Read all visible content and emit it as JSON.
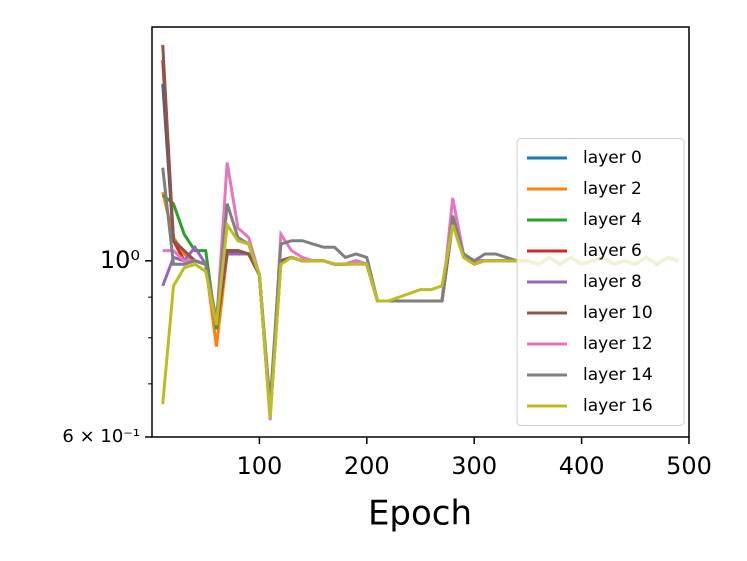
{
  "chart_data": {
    "type": "line",
    "x_label": "Epoch",
    "x": [
      10,
      20,
      30,
      40,
      50,
      60,
      70,
      80,
      90,
      100,
      110,
      120,
      130,
      140,
      150,
      160,
      170,
      180,
      190,
      200,
      210,
      220,
      230,
      240,
      250,
      260,
      270,
      280,
      290,
      300,
      310,
      320,
      330,
      340,
      350,
      360,
      370,
      380,
      390,
      400,
      410,
      420,
      430,
      440,
      450,
      460,
      470,
      480,
      490
    ],
    "xlim": [
      0,
      500
    ],
    "xticks": [
      100,
      200,
      300,
      400,
      500
    ],
    "ylim": [
      0.6,
      1.97
    ],
    "y_scale": "log",
    "yticks": [
      {
        "value": 0.6,
        "label": "6 × 10⁻¹"
      },
      {
        "value": 1,
        "label": "10⁰"
      }
    ],
    "yminorticks": [
      0.7,
      0.8,
      0.9
    ],
    "grid": false,
    "legend": "center right",
    "series": [
      {
        "name": "layer 0",
        "color": "#1f77b4",
        "values": [
          1.67,
          1.06,
          1.02,
          1.0,
          0.99,
          0.84,
          1.03,
          1.03,
          1.02,
          0.96,
          0.64,
          1.0,
          1.01,
          1.0,
          1.0,
          1.0,
          0.99,
          0.99,
          1.0,
          0.99,
          0.89,
          0.89,
          0.89,
          0.89,
          0.89,
          0.89,
          0.89,
          1.12,
          1.02,
          1.0,
          1.0,
          1.0,
          1.0,
          1.0,
          1.0,
          0.99,
          1.01,
          0.99,
          1.01,
          0.99,
          1.0,
          1.01,
          0.99,
          1.0,
          0.99,
          1.01,
          0.99,
          1.01,
          1.0
        ]
      },
      {
        "name": "layer 2",
        "color": "#ff7f0e",
        "values": [
          1.22,
          1.07,
          1.02,
          1.0,
          0.99,
          0.78,
          1.02,
          1.03,
          1.02,
          0.96,
          0.64,
          1.0,
          1.01,
          1.0,
          1.0,
          1.0,
          0.99,
          0.99,
          1.0,
          0.99,
          0.89,
          0.89,
          0.89,
          0.89,
          0.89,
          0.89,
          0.89,
          1.12,
          1.02,
          1.0,
          1.0,
          1.0,
          1.0,
          1.0,
          1.0,
          0.99,
          1.01,
          0.99,
          1.01,
          0.99,
          1.0,
          1.01,
          0.99,
          1.0,
          0.99,
          1.01,
          0.99,
          1.01,
          1.0
        ]
      },
      {
        "name": "layer 4",
        "color": "#2ca02c",
        "values": [
          1.21,
          1.18,
          1.08,
          1.03,
          1.03,
          0.82,
          1.03,
          1.02,
          1.02,
          0.96,
          0.64,
          1.0,
          1.01,
          1.0,
          1.0,
          1.0,
          0.99,
          0.99,
          1.0,
          0.99,
          0.89,
          0.89,
          0.89,
          0.89,
          0.89,
          0.89,
          0.89,
          1.12,
          1.02,
          1.0,
          1.0,
          1.0,
          1.0,
          1.0,
          1.0,
          0.99,
          1.01,
          0.99,
          1.01,
          0.99,
          1.0,
          1.01,
          0.99,
          1.0,
          0.99,
          1.01,
          0.99,
          1.01,
          1.0
        ]
      },
      {
        "name": "layer 6",
        "color": "#d62728",
        "values": [
          1.79,
          1.06,
          1.0,
          1.0,
          0.99,
          0.83,
          1.02,
          1.03,
          1.02,
          0.96,
          0.64,
          1.0,
          1.01,
          1.0,
          1.0,
          1.0,
          0.99,
          0.99,
          1.0,
          0.99,
          0.89,
          0.89,
          0.89,
          0.89,
          0.89,
          0.89,
          0.89,
          1.12,
          1.02,
          1.0,
          1.0,
          1.0,
          1.0,
          1.0,
          1.0,
          0.99,
          1.01,
          0.99,
          1.01,
          0.99,
          1.0,
          1.01,
          0.99,
          1.0,
          0.99,
          1.01,
          0.99,
          1.01,
          1.0
        ]
      },
      {
        "name": "layer 8",
        "color": "#9467bd",
        "values": [
          0.93,
          1.01,
          1.0,
          1.04,
          0.99,
          0.84,
          1.02,
          1.02,
          1.02,
          0.96,
          0.64,
          1.0,
          1.01,
          1.0,
          1.0,
          1.0,
          0.99,
          0.99,
          1.0,
          0.99,
          0.89,
          0.89,
          0.89,
          0.89,
          0.89,
          0.89,
          0.89,
          1.12,
          1.02,
          1.0,
          1.0,
          1.0,
          1.0,
          1.0,
          1.0,
          0.99,
          1.01,
          0.99,
          1.01,
          0.99,
          1.0,
          1.01,
          0.99,
          1.0,
          0.99,
          1.01,
          0.99,
          1.01,
          1.0
        ]
      },
      {
        "name": "layer 10",
        "color": "#8c564b",
        "values": [
          1.87,
          1.06,
          1.03,
          1.0,
          0.99,
          0.83,
          1.03,
          1.03,
          1.02,
          0.96,
          0.64,
          1.0,
          1.01,
          1.0,
          1.0,
          1.0,
          0.99,
          0.99,
          1.0,
          0.99,
          0.89,
          0.89,
          0.89,
          0.89,
          0.89,
          0.89,
          0.89,
          1.12,
          1.02,
          1.0,
          1.0,
          1.0,
          1.0,
          1.0,
          1.0,
          0.99,
          1.01,
          0.99,
          1.01,
          0.99,
          1.0,
          1.01,
          0.99,
          1.0,
          0.99,
          1.01,
          0.99,
          1.01,
          1.0
        ]
      },
      {
        "name": "layer 12",
        "color": "#e377c2",
        "values": [
          1.03,
          1.03,
          1.0,
          1.0,
          0.99,
          0.83,
          1.33,
          1.1,
          1.07,
          0.96,
          0.63,
          1.08,
          1.03,
          1.01,
          1.0,
          1.0,
          0.99,
          0.99,
          1.0,
          0.99,
          0.89,
          0.89,
          0.89,
          0.89,
          0.89,
          0.89,
          0.89,
          1.2,
          1.02,
          1.0,
          1.0,
          1.0,
          1.0,
          1.0,
          1.0,
          0.99,
          1.01,
          0.99,
          1.01,
          0.99,
          1.0,
          1.01,
          0.99,
          1.0,
          0.99,
          1.01,
          0.99,
          1.01,
          1.0
        ]
      },
      {
        "name": "layer 14",
        "color": "#7f7f7f",
        "values": [
          1.31,
          0.99,
          0.99,
          1.0,
          0.99,
          0.84,
          1.18,
          1.07,
          1.05,
          0.96,
          0.66,
          1.05,
          1.06,
          1.06,
          1.05,
          1.04,
          1.04,
          1.01,
          1.02,
          1.01,
          0.89,
          0.89,
          0.89,
          0.89,
          0.89,
          0.89,
          0.89,
          1.14,
          1.02,
          1.0,
          1.02,
          1.02,
          1.01,
          1.0,
          1.0,
          0.99,
          1.01,
          0.99,
          1.01,
          0.99,
          1.0,
          1.01,
          0.99,
          1.0,
          0.99,
          1.01,
          0.99,
          1.01,
          1.0
        ]
      },
      {
        "name": "layer 16",
        "color": "#bcbd22",
        "values": [
          0.66,
          0.93,
          0.98,
          0.99,
          0.97,
          0.83,
          1.11,
          1.06,
          1.05,
          0.96,
          0.634,
          0.99,
          1.01,
          1.0,
          1.0,
          1.0,
          0.99,
          0.99,
          0.99,
          0.99,
          0.89,
          0.89,
          0.9,
          0.91,
          0.92,
          0.92,
          0.93,
          1.11,
          1.01,
          0.99,
          1.0,
          1.0,
          1.0,
          1.0,
          1.0,
          0.99,
          1.01,
          0.99,
          1.01,
          0.99,
          1.0,
          1.01,
          0.99,
          1.0,
          0.99,
          1.01,
          0.99,
          1.01,
          1.0
        ]
      }
    ]
  }
}
